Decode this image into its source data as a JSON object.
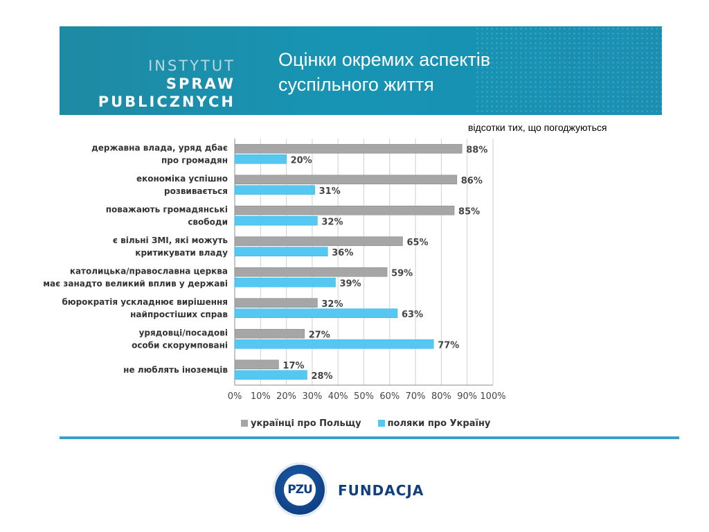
{
  "header": {
    "logo_line1_a": "INSTYTUT",
    "logo_line1_b": "SPRAW",
    "logo_line2": "PUBLICZNYCH",
    "title_line1": "Оцінки окремих аспектів",
    "title_line2": "суспільного життя"
  },
  "note": "відсотки тих, що погоджуються",
  "footer": {
    "brand_mark": "PZU",
    "brand_name": "FUNDACJA"
  },
  "colors": {
    "gray_series": "#a6a6a6",
    "blue_series": "#55c8f2",
    "header_bg": "#1794b3",
    "rule": "#3a9fc9"
  },
  "chart_data": {
    "type": "bar",
    "orientation": "horizontal",
    "categories": [
      [
        "державна влада, уряд дбає",
        "про громадян"
      ],
      [
        "економіка успішно",
        "розвивається"
      ],
      [
        "поважають громадянські",
        "свободи"
      ],
      [
        "є вільні ЗМІ, які можуть",
        "критикувати владу"
      ],
      [
        "католицька/православна церква",
        "має занадто великий вплив у державі"
      ],
      [
        "бюрократія ускладнює вирішення",
        "найпростіших справ"
      ],
      [
        "урядовці/посадові",
        "особи скорумповані"
      ],
      [
        "не люблять іноземців"
      ]
    ],
    "series": [
      {
        "name": "українці про Польщу",
        "values": [
          88,
          86,
          85,
          65,
          59,
          32,
          27,
          17
        ]
      },
      {
        "name": "поляки про Україну",
        "values": [
          20,
          31,
          32,
          36,
          39,
          63,
          77,
          28
        ]
      }
    ],
    "value_suffix": "%",
    "xlim": [
      0,
      100
    ],
    "xticks": [
      "0%",
      "10%",
      "20%",
      "30%",
      "40%",
      "50%",
      "60%",
      "70%",
      "80%",
      "90%",
      "100%"
    ],
    "grid": true,
    "legend": "bottom"
  }
}
